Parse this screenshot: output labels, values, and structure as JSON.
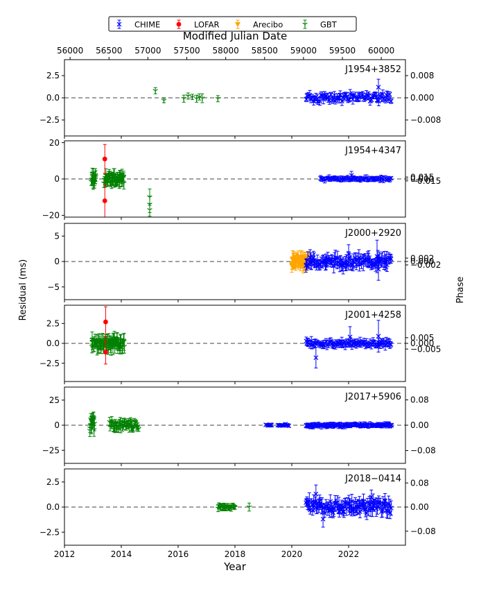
{
  "chart_data": {
    "type": "scatter",
    "legend": {
      "position": "top-center",
      "entries": [
        {
          "name": "CHIME",
          "color": "#0000ff",
          "marker": "x"
        },
        {
          "name": "LOFAR",
          "color": "#ff0000",
          "marker": "o"
        },
        {
          "name": "Arecibo",
          "color": "#ffa500",
          "marker": "v"
        },
        {
          "name": "GBT",
          "color": "#008000",
          "marker": "1"
        }
      ]
    },
    "top_axis": {
      "label": "Modified Julian Date",
      "ticks": [
        56000,
        56500,
        57000,
        57500,
        58000,
        58500,
        59000,
        59500,
        60000
      ]
    },
    "x_axis": {
      "label": "Year",
      "range": [
        2012,
        2024
      ],
      "ticks": [
        2012,
        2014,
        2016,
        2018,
        2020,
        2022
      ]
    },
    "ylabel_left": "Residual (ms)",
    "ylabel_right": "Phase",
    "panels": [
      {
        "name": "J1954+3852",
        "ylim": [
          -4.3,
          4.3
        ],
        "yticks": [
          2.5,
          0.0,
          -2.5
        ],
        "ytick_labels": [
          "2.5",
          "0.0",
          "−2.5"
        ],
        "phase_ticks": [
          0.008,
          0.0,
          -0.008
        ],
        "phase_labels": [
          "0.008",
          "0.000",
          "−0.008"
        ],
        "phase_scale": 0.0032,
        "series": [
          {
            "name": "GBT",
            "points": [
              [
                2015.2,
                0.8,
                0.35
              ],
              [
                2015.5,
                -0.3,
                0.25
              ],
              [
                2016.2,
                -0.1,
                0.4
              ],
              [
                2016.35,
                0.2,
                0.35
              ],
              [
                2016.5,
                0.1,
                0.3
              ],
              [
                2016.65,
                -0.1,
                0.4
              ],
              [
                2016.75,
                0.1,
                0.35
              ],
              [
                2016.85,
                -0.05,
                0.5
              ],
              [
                2017.4,
                -0.1,
                0.35
              ]
            ]
          },
          {
            "name": "CHIME",
            "clusters": [
              {
                "x0": 2020.5,
                "x1": 2023.5,
                "n": 70,
                "amp": 0.45,
                "err": 0.45,
                "seed": 11
              }
            ],
            "points": [
              [
                2023.05,
                1.2,
                0.9
              ]
            ]
          }
        ]
      },
      {
        "name": "J1954+4347",
        "ylim": [
          -21,
          21
        ],
        "yticks": [
          20,
          0,
          -20
        ],
        "ytick_labels": [
          "20",
          "0",
          "−20"
        ],
        "phase_ticks": [
          0.015,
          0.0,
          -0.015
        ],
        "phase_labels": [
          "0.015",
          "0.000",
          "−0.015"
        ],
        "phase_scale": 0.0142,
        "series": [
          {
            "name": "GBT",
            "clusters": [
              {
                "x0": 2012.95,
                "x1": 2013.1,
                "n": 16,
                "amp": 3.0,
                "err": 3.0,
                "seed": 21
              },
              {
                "x0": 2013.4,
                "x1": 2014.1,
                "n": 55,
                "amp": 2.5,
                "err": 3.0,
                "seed": 22
              }
            ],
            "points": [
              [
                2015.0,
                -10,
                4.5
              ],
              [
                2015.0,
                -14,
                4.5
              ],
              [
                2015.0,
                -17,
                3.5
              ]
            ]
          },
          {
            "name": "LOFAR",
            "points": [
              [
                2013.42,
                11,
                8
              ],
              [
                2013.42,
                -12,
                9
              ]
            ]
          },
          {
            "name": "CHIME",
            "clusters": [
              {
                "x0": 2021.0,
                "x1": 2023.5,
                "n": 50,
                "amp": 0.6,
                "err": 1.5,
                "seed": 23
              }
            ],
            "points": [
              [
                2022.1,
                2.0,
                2.2
              ]
            ]
          }
        ]
      },
      {
        "name": "J2000+2920",
        "ylim": [
          -7.5,
          7.5
        ],
        "yticks": [
          5,
          0,
          -5
        ],
        "ytick_labels": [
          "5",
          "0",
          "−5"
        ],
        "phase_ticks": [
          0.002,
          0.0,
          -0.002
        ],
        "phase_labels": [
          "0.002",
          "0.000",
          "−0.002"
        ],
        "phase_scale": 0.00297,
        "series": [
          {
            "name": "Arecibo",
            "clusters": [
              {
                "x0": 2020.0,
                "x1": 2020.6,
                "n": 55,
                "amp": 0.8,
                "err": 1.3,
                "seed": 31
              }
            ]
          },
          {
            "name": "CHIME",
            "clusters": [
              {
                "x0": 2020.5,
                "x1": 2023.5,
                "n": 90,
                "amp": 0.8,
                "err": 1.4,
                "seed": 32
              }
            ],
            "points": [
              [
                2023.05,
                -1.5,
                2.2
              ],
              [
                2023.0,
                1.0,
                3.2
              ],
              [
                2022.0,
                1.5,
                1.8
              ]
            ]
          }
        ]
      },
      {
        "name": "J2001+4258",
        "ylim": [
          -4.8,
          4.8
        ],
        "yticks": [
          2.5,
          0.0,
          -2.5
        ],
        "ytick_labels": [
          "2.5",
          "0.0",
          "−2.5"
        ],
        "phase_ticks": [
          0.005,
          0.0,
          -0.005
        ],
        "phase_labels": [
          "0.005",
          "0.000",
          "−0.005"
        ],
        "phase_scale": 0.00702,
        "series": [
          {
            "name": "GBT",
            "clusters": [
              {
                "x0": 2012.95,
                "x1": 2014.1,
                "n": 70,
                "amp": 0.6,
                "err": 0.9,
                "seed": 41
              }
            ]
          },
          {
            "name": "LOFAR",
            "points": [
              [
                2013.45,
                2.7,
                1.9
              ],
              [
                2013.45,
                -1.1,
                1.5
              ]
            ]
          },
          {
            "name": "CHIME",
            "clusters": [
              {
                "x0": 2020.5,
                "x1": 2023.5,
                "n": 70,
                "amp": 0.3,
                "err": 0.5,
                "seed": 42
              }
            ],
            "points": [
              [
                2020.85,
                -1.8,
                1.3
              ],
              [
                2023.05,
                0.9,
                2.0
              ],
              [
                2022.05,
                0.8,
                1.3
              ]
            ]
          }
        ]
      },
      {
        "name": "J2017+5906",
        "ylim": [
          -38,
          38
        ],
        "yticks": [
          25,
          0,
          -25
        ],
        "ytick_labels": [
          "25",
          "0",
          "−25"
        ],
        "phase_ticks": [
          0.08,
          0.0,
          -0.08
        ],
        "phase_labels": [
          "0.08",
          "0.00",
          "−0.08"
        ],
        "phase_scale": 0.00317,
        "series": [
          {
            "name": "GBT",
            "clusters": [
              {
                "x0": 2012.9,
                "x1": 2013.05,
                "n": 16,
                "amp": 7,
                "err": 6,
                "seed": 51
              },
              {
                "x0": 2013.6,
                "x1": 2014.6,
                "n": 50,
                "amp": 4,
                "err": 4,
                "seed": 52
              }
            ]
          },
          {
            "name": "CHIME",
            "clusters": [
              {
                "x0": 2019.1,
                "x1": 2019.3,
                "n": 6,
                "amp": 1,
                "err": 2,
                "seed": 53
              },
              {
                "x0": 2019.5,
                "x1": 2019.9,
                "n": 10,
                "amp": 1,
                "err": 1.5,
                "seed": 54
              },
              {
                "x0": 2020.5,
                "x1": 2023.5,
                "n": 80,
                "amp": 1,
                "err": 2.5,
                "seed": 55
              }
            ]
          }
        ]
      },
      {
        "name": "J2018−0414",
        "ylim": [
          -3.8,
          3.8
        ],
        "yticks": [
          2.5,
          0.0,
          -2.5
        ],
        "ytick_labels": [
          "2.5",
          "0.0",
          "−2.5"
        ],
        "phase_ticks": [
          0.08,
          0.0,
          -0.08
        ],
        "phase_labels": [
          "0.08",
          "0.00",
          "−0.08"
        ],
        "phase_scale": 0.0333,
        "series": [
          {
            "name": "GBT",
            "clusters": [
              {
                "x0": 2017.4,
                "x1": 2018.0,
                "n": 22,
                "amp": 0.15,
                "err": 0.3,
                "seed": 61
              }
            ],
            "points": [
              [
                2018.5,
                0.0,
                0.4
              ]
            ]
          },
          {
            "name": "CHIME",
            "clusters": [
              {
                "x0": 2020.5,
                "x1": 2023.5,
                "n": 95,
                "amp": 0.6,
                "err": 0.7,
                "seed": 62
              }
            ],
            "points": [
              [
                2020.85,
                1.3,
                0.9
              ],
              [
                2021.1,
                -1.2,
                0.8
              ],
              [
                2022.8,
                1.0,
                0.7
              ]
            ]
          }
        ]
      }
    ]
  }
}
